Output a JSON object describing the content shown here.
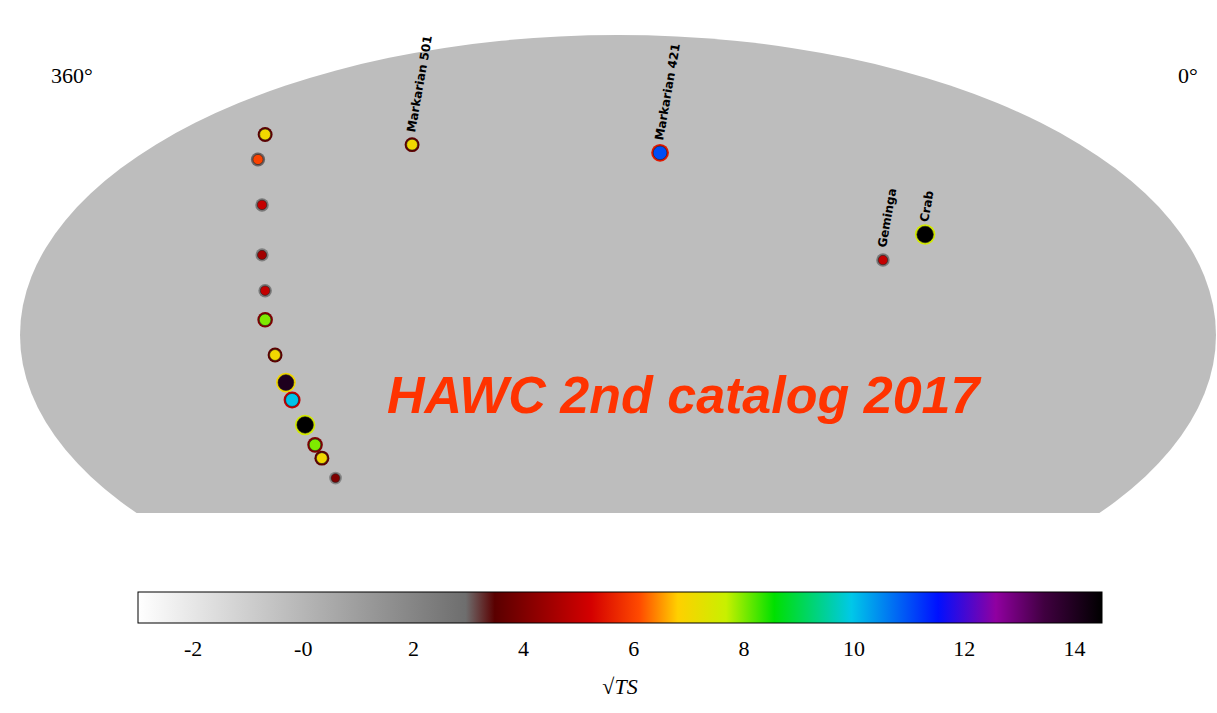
{
  "chart_data": {
    "type": "scatter",
    "title": "HAWC 2nd catalog 2017",
    "xlim": [
      360,
      0
    ],
    "xticks": [
      {
        "value": 360,
        "label": "360°"
      },
      {
        "value": 0,
        "label": "0°"
      }
    ],
    "ylim": [
      -30,
      65
    ],
    "tick_labels": "x",
    "grid": false,
    "x": [
      250.3,
      170.3,
      98.4,
      84.8,
      297.7,
      300,
      298.7,
      298.7,
      297.7,
      297.7,
      294.5,
      291,
      289,
      284.8,
      281.6,
      279.4,
      275
    ],
    "y": [
      39.6,
      38,
      17,
      22,
      41.6,
      36.7,
      27.8,
      18,
      11,
      5.3,
      -1.6,
      -7,
      -10.4,
      -15.3,
      -19.2,
      -21.8,
      -25.7
    ],
    "values": [
      7,
      11,
      5,
      15,
      7,
      6,
      5,
      4.5,
      5,
      8,
      7,
      14,
      10,
      15,
      8,
      7,
      4
    ],
    "labels": [
      "Markarian 501",
      "Markarian 421",
      "Geminga",
      "Crab",
      null,
      null,
      null,
      null,
      null,
      null,
      null,
      null,
      null,
      null,
      null,
      null,
      null
    ],
    "colorbar": {
      "range": [
        -3,
        14.5
      ],
      "ticks": [
        -2,
        {
          "value": 0,
          "label": "-0"
        },
        2,
        4,
        6,
        8,
        10,
        12,
        14
      ],
      "label": "√TS"
    }
  }
}
